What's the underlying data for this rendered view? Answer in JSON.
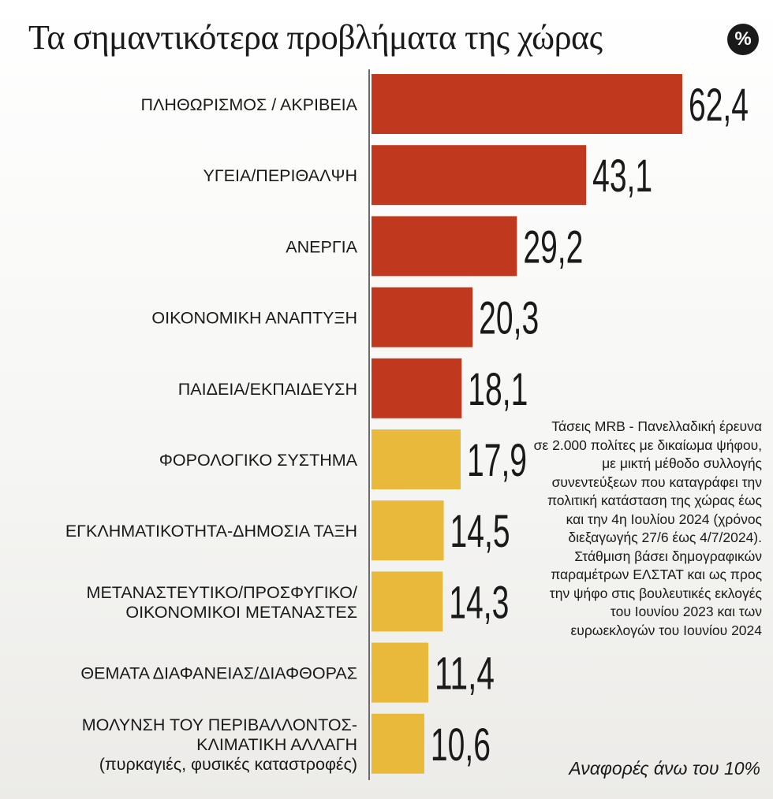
{
  "header": {
    "title": "Τα σημαντικότερα προβλήματα της χώρας",
    "unit_badge": "%"
  },
  "note": "Τάσεις MRB - Πανελλαδική έρευνα σε 2.000 πολίτες με δικαίωμα ψήφου, με μικτή μέθοδο συλλογής συνεντεύξεων που καταγράφει την πολιτική κατάσταση της χώρας έως και την 4η Ιουλίου 2024 (χρόνος διεξαγωγής 27/6 έως 4/7/2024). Στάθμιση βάσει δημογραφικών παραμέτρων ΕΛΣΤΑΤ και ως προς την ψήφο στις βουλευτικές εκλογές του Ιουνίου 2023 και των ευρωεκλογών του Ιουνίου 2024",
  "footnote": "Αναφορές άνω του 10%",
  "colors": {
    "top": "#c0381e",
    "rest": "#e8b93a"
  },
  "chart_data": {
    "type": "bar",
    "orientation": "horizontal",
    "title": "Τα σημαντικότερα προβλήματα της χώρας",
    "unit": "%",
    "categories": [
      [
        "ΠΛΗΘΩΡΙΣΜΟΣ / ΑΚΡΙΒΕΙΑ"
      ],
      [
        "ΥΓΕΙΑ/ΠΕΡΙΘΑΛΨΗ"
      ],
      [
        "ΑΝΕΡΓΙΑ"
      ],
      [
        "ΟΙΚΟΝΟΜΙΚΗ ΑΝΑΠΤΥΞΗ"
      ],
      [
        "ΠΑΙΔΕΙΑ/ΕΚΠΑΙΔΕΥΣΗ"
      ],
      [
        "ΦΟΡΟΛΟΓΙΚΟ ΣΥΣΤΗΜΑ"
      ],
      [
        "ΕΓΚΛΗΜΑΤΙΚΟΤΗΤΑ-ΔΗΜΟΣΙΑ ΤΑΞΗ"
      ],
      [
        "ΜΕΤΑΝΑΣΤΕΥΤΙΚΟ/ΠΡΟΣΦΥΓΙΚΟ/",
        "ΟΙΚΟΝΟΜΙΚΟΙ ΜΕΤΑΝΑΣΤΕΣ"
      ],
      [
        "ΘΕΜΑΤΑ ΔΙΑΦΑΝΕΙΑΣ/ΔΙΑΦΘΟΡΑΣ"
      ],
      [
        "ΜΟΛΥΝΣΗ ΤΟΥ ΠΕΡΙΒΑΛΛΟΝΤΟΣ-",
        "ΚΛΙΜΑΤΙΚΗ ΑΛΛΑΓΗ",
        "(πυρκαγιές, φυσικές καταστροφές)"
      ]
    ],
    "values": [
      62.4,
      43.1,
      29.2,
      20.3,
      18.1,
      17.9,
      14.5,
      14.3,
      11.4,
      10.6
    ],
    "value_labels": [
      "62,4",
      "43,1",
      "29,2",
      "20,3",
      "18,1",
      "17,9",
      "14,5",
      "14,3",
      "11,4",
      "10,6"
    ],
    "highlight_count": 5,
    "xlim": [
      0,
      62.4
    ],
    "grid": false,
    "legend": false
  }
}
